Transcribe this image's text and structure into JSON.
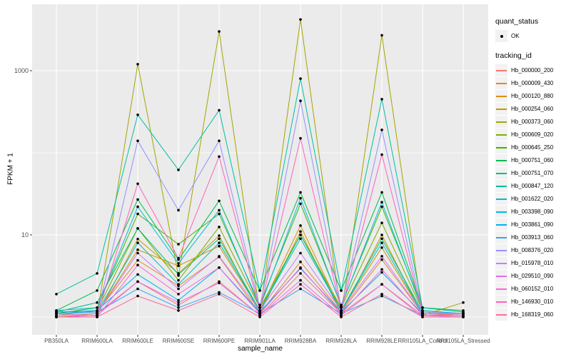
{
  "chart_data": {
    "type": "line",
    "title": "",
    "xlabel": "sample_name",
    "ylabel": "FPKM + 1",
    "y_scale": "log10",
    "y_tick_values": [
      10,
      1000
    ],
    "y_grid_values": [
      1,
      10,
      100,
      1000
    ],
    "ylim": [
      1,
      5000
    ],
    "grid": true,
    "legend_position": "right",
    "panel_bg": "#EBEBEB",
    "grid_color": "#FFFFFF",
    "tick_label_color": "#4D4D4D",
    "point_color": "#000000",
    "categories": [
      "PB350LA",
      "RRIM600LA",
      "RRIM600LE",
      "RRIM600SE",
      "RRIM600PE",
      "RRIM901LA",
      "RRIM928BA",
      "RRIM928LA",
      "RRIM928LE",
      "RRII105LA_Control",
      "RRII105LA_Stressed"
    ],
    "legend": {
      "quant_status_title": "quant_status",
      "quant_status_items": [
        "OK"
      ],
      "tracking_title": "tracking_id"
    },
    "series": [
      {
        "name": "Hb_000000_200",
        "color": "#F8766D",
        "values": [
          1.05,
          1.1,
          2.7,
          1.4,
          2.7,
          1.05,
          3.4,
          1.1,
          2.5,
          1.05,
          1.05
        ]
      },
      {
        "name": "Hb_000009_430",
        "color": "#EA8331",
        "values": [
          1.1,
          1.15,
          4.9,
          2.4,
          5.4,
          1.1,
          4.7,
          1.15,
          5.0,
          1.1,
          1.1
        ]
      },
      {
        "name": "Hb_000120_880",
        "color": "#D89000",
        "values": [
          1.0,
          1.1,
          6.6,
          4.2,
          7.3,
          1.2,
          13,
          1.2,
          7.0,
          1.1,
          1.1
        ]
      },
      {
        "name": "Hb_000254_060",
        "color": "#C09B00",
        "values": [
          1.0,
          1.05,
          8.9,
          3.4,
          9.8,
          1.1,
          11,
          1.1,
          10,
          1.05,
          1.05
        ]
      },
      {
        "name": "Hb_000373_060",
        "color": "#A3A500",
        "values": [
          1.0,
          1.05,
          1200,
          3.2,
          3000,
          1.1,
          4200,
          1.05,
          2700,
          1.05,
          1.5
        ]
      },
      {
        "name": "Hb_000609_020",
        "color": "#7CAE00",
        "values": [
          1.05,
          1.2,
          12,
          2.8,
          12.5,
          1.3,
          10,
          1.3,
          14,
          1.2,
          1.1
        ]
      },
      {
        "name": "Hb_000645_250",
        "color": "#39B600",
        "values": [
          1.1,
          1.3,
          18,
          7.7,
          18,
          1.4,
          24,
          1.4,
          22,
          1.3,
          1.15
        ]
      },
      {
        "name": "Hb_000751_060",
        "color": "#00BB4E",
        "values": [
          1.2,
          2.1,
          27,
          5.0,
          26,
          2.1,
          33,
          2.1,
          33,
          1.3,
          1.2
        ]
      },
      {
        "name": "Hb_000751_070",
        "color": "#00BF7D",
        "values": [
          1.15,
          1.5,
          12,
          3.3,
          9.0,
          1.2,
          10,
          1.2,
          9.0,
          1.15,
          1.1
        ]
      },
      {
        "name": "Hb_000847_120",
        "color": "#00C1A3",
        "values": [
          1.9,
          3.4,
          290,
          62,
          330,
          2.1,
          800,
          2.1,
          450,
          1.3,
          1.15
        ]
      },
      {
        "name": "Hb_001622_020",
        "color": "#00BFC4",
        "values": [
          1.15,
          1.15,
          8.0,
          2.5,
          8.0,
          1.2,
          9.0,
          1.2,
          8.0,
          1.1,
          1.05
        ]
      },
      {
        "name": "Hb_003398_090",
        "color": "#00BAE0",
        "values": [
          1.2,
          1.3,
          22,
          4.5,
          20,
          1.3,
          28,
          1.35,
          25,
          1.2,
          1.1
        ]
      },
      {
        "name": "Hb_003861_090",
        "color": "#00B0F6",
        "values": [
          1.15,
          1.2,
          3.3,
          1.6,
          4.0,
          1.15,
          3.9,
          1.15,
          3.5,
          1.1,
          1.05
        ]
      },
      {
        "name": "Hb_003913_060",
        "color": "#35A2FF",
        "values": [
          1.1,
          1.15,
          2.2,
          1.3,
          2.0,
          1.1,
          2.2,
          1.1,
          1.8,
          1.05,
          1.0
        ]
      },
      {
        "name": "Hb_008376_020",
        "color": "#9590FF",
        "values": [
          1.0,
          1.05,
          140,
          20,
          140,
          1.3,
          430,
          1.3,
          190,
          1.15,
          1.1
        ]
      },
      {
        "name": "Hb_015978_010",
        "color": "#C77CFF",
        "values": [
          1.05,
          1.1,
          6.0,
          2.2,
          5.5,
          1.2,
          6.0,
          1.2,
          5.5,
          1.1,
          1.05
        ]
      },
      {
        "name": "Hb_029510_090",
        "color": "#E76BF3",
        "values": [
          1.0,
          1.05,
          2.7,
          1.5,
          2.6,
          1.05,
          2.8,
          1.05,
          2.5,
          1.0,
          1.0
        ]
      },
      {
        "name": "Hb_060152_010",
        "color": "#FA62DB",
        "values": [
          1.0,
          1.0,
          4.3,
          1.9,
          4.0,
          1.1,
          4.0,
          1.1,
          3.8,
          1.05,
          1.0
        ]
      },
      {
        "name": "Hb_146930_010",
        "color": "#FF62BC",
        "values": [
          1.0,
          1.05,
          42,
          5.2,
          90,
          1.2,
          150,
          1.2,
          95,
          1.1,
          1.05
        ]
      },
      {
        "name": "Hb_168319_060",
        "color": "#FF6A98",
        "values": [
          1.0,
          1.0,
          1.8,
          1.2,
          1.9,
          1.0,
          2.5,
          1.0,
          1.9,
          1.0,
          1.0
        ]
      }
    ]
  }
}
